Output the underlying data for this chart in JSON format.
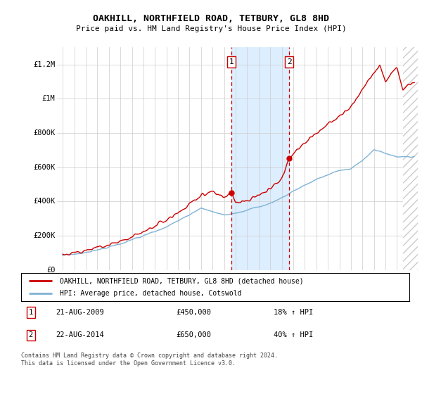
{
  "title": "OAKHILL, NORTHFIELD ROAD, TETBURY, GL8 8HD",
  "subtitle": "Price paid vs. HM Land Registry's House Price Index (HPI)",
  "ylabel_ticks": [
    "£0",
    "£200K",
    "£400K",
    "£600K",
    "£800K",
    "£1M",
    "£1.2M"
  ],
  "ytick_values": [
    0,
    200000,
    400000,
    600000,
    800000,
    1000000,
    1200000
  ],
  "ylim": [
    0,
    1300000
  ],
  "x_start_year": 1995,
  "x_end_year": 2025,
  "marker1_x": 2009.64,
  "marker2_x": 2014.64,
  "marker1_price": 450000,
  "marker2_price": 650000,
  "marker1_date": "21-AUG-2009",
  "marker2_date": "22-AUG-2014",
  "marker1_hpi": "18% ↑ HPI",
  "marker2_hpi": "40% ↑ HPI",
  "legend_house_label": "OAKHILL, NORTHFIELD ROAD, TETBURY, GL8 8HD (detached house)",
  "legend_hpi_label": "HPI: Average price, detached house, Cotswold",
  "house_color": "#cc0000",
  "hpi_color": "#7fb2d5",
  "shaded_color": "#ddeeff",
  "marker_box_color": "#cc0000",
  "background_color": "#ffffff",
  "grid_color": "#cccccc",
  "footnote": "Contains HM Land Registry data © Crown copyright and database right 2024.\nThis data is licensed under the Open Government Licence v3.0.",
  "hatch_color": "#cccccc",
  "hpi_keypoints_x": [
    1995,
    1997,
    2000,
    2002,
    2004,
    2007,
    2008,
    2009,
    2010,
    2011,
    2013,
    2014,
    2015,
    2017,
    2019,
    2020,
    2021,
    2022,
    2023,
    2024,
    2025.5
  ],
  "hpi_keypoints_y": [
    85000,
    100000,
    150000,
    200000,
    250000,
    360000,
    340000,
    320000,
    330000,
    350000,
    390000,
    420000,
    460000,
    530000,
    580000,
    590000,
    640000,
    700000,
    680000,
    660000,
    660000
  ],
  "house_keypoints_x": [
    1995,
    1997,
    2000,
    2002,
    2004,
    2007,
    2008,
    2009.0,
    2009.64,
    2010,
    2011,
    2012,
    2013,
    2014.0,
    2014.64,
    2015,
    2017,
    2019,
    2020,
    2021,
    2022,
    2022.5,
    2023,
    2023.5,
    2024,
    2024.5,
    2025.5
  ],
  "house_keypoints_y": [
    90000,
    110000,
    165000,
    220000,
    290000,
    430000,
    460000,
    430000,
    450000,
    390000,
    410000,
    430000,
    480000,
    530000,
    650000,
    680000,
    800000,
    900000,
    950000,
    1050000,
    1150000,
    1200000,
    1100000,
    1150000,
    1180000,
    1050000,
    1100000
  ]
}
